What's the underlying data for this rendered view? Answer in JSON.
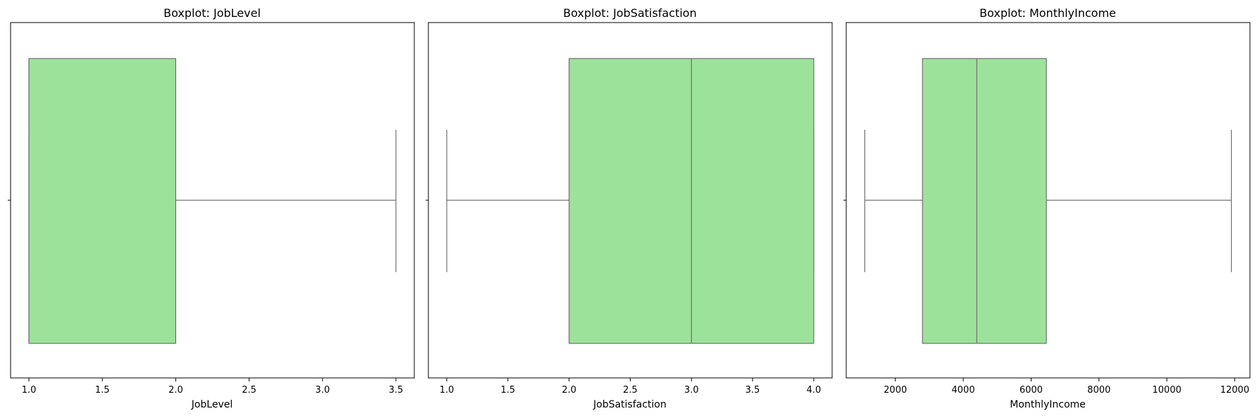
{
  "chart_data": [
    {
      "type": "boxplot",
      "title": "Boxplot: JobLevel",
      "xlabel": "JobLevel",
      "ylabel": "",
      "xlim": [
        0.875,
        3.625
      ],
      "xticks": [
        1.0,
        1.5,
        2.0,
        2.5,
        3.0,
        3.5
      ],
      "xtick_labels": [
        "1.0",
        "1.5",
        "2.0",
        "2.5",
        "3.0",
        "3.5"
      ],
      "box": {
        "whisker_low": 1.0,
        "q1": 1.0,
        "median": 1.0,
        "q3": 2.0,
        "whisker_high": 3.5
      },
      "box_color": "#9de29b",
      "line_color": "#707070",
      "grid": false
    },
    {
      "type": "boxplot",
      "title": "Boxplot: JobSatisfaction",
      "xlabel": "JobSatisfaction",
      "ylabel": "",
      "xlim": [
        0.85,
        4.15
      ],
      "xticks": [
        1.0,
        1.5,
        2.0,
        2.5,
        3.0,
        3.5,
        4.0
      ],
      "xtick_labels": [
        "1.0",
        "1.5",
        "2.0",
        "2.5",
        "3.0",
        "3.5",
        "4.0"
      ],
      "box": {
        "whisker_low": 1.0,
        "q1": 2.0,
        "median": 3.0,
        "q3": 4.0,
        "whisker_high": 4.0
      },
      "box_color": "#9de29b",
      "line_color": "#707070",
      "grid": false
    },
    {
      "type": "boxplot",
      "title": "Boxplot: MonthlyIncome",
      "xlabel": "MonthlyIncome",
      "ylabel": "",
      "xlim": [
        553,
        12448
      ],
      "xticks": [
        2000,
        4000,
        6000,
        8000,
        10000,
        12000
      ],
      "xtick_labels": [
        "2000",
        "4000",
        "6000",
        "8000",
        "10000",
        "12000"
      ],
      "box": {
        "whisker_low": 1100,
        "q1": 2800,
        "median": 4400,
        "q3": 6450,
        "whisker_high": 11900
      },
      "box_color": "#9de29b",
      "line_color": "#707070",
      "grid": false
    }
  ]
}
